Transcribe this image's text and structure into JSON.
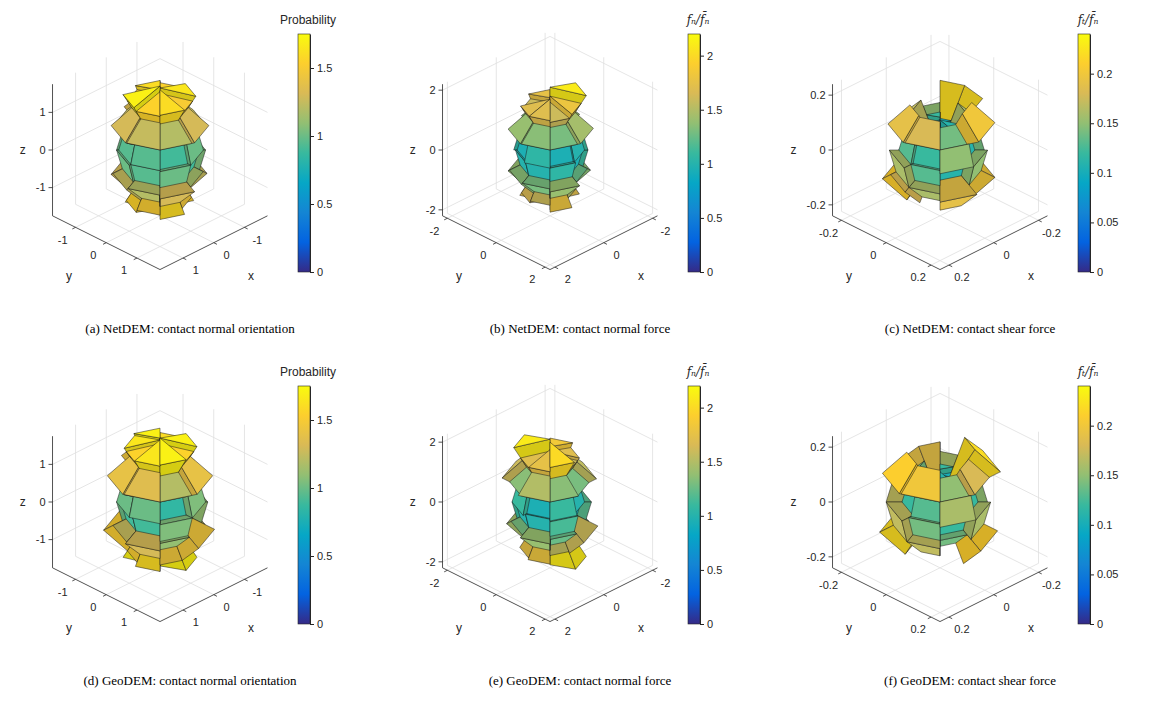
{
  "chart_data": [
    {
      "type": "rose3d",
      "caption": "(a) NetDEM: contact normal orientation",
      "grid": true,
      "xlabel": "x",
      "ylabel": "y",
      "zlabel": "z",
      "xlim": [
        -1.75,
        1.75
      ],
      "ylim": [
        -1.75,
        1.75
      ],
      "zlim": [
        -1.75,
        1.75
      ],
      "xticks": [
        -1,
        0,
        1
      ],
      "yticks": [
        -1,
        0,
        1
      ],
      "zticks": [
        -1,
        0,
        1
      ],
      "colorbar": {
        "label": "Probability",
        "range": [
          0,
          1.75
        ],
        "ticks": [
          0,
          0.5,
          1,
          1.5
        ]
      },
      "azimuth_bins": [
        0,
        45,
        90,
        135,
        180,
        225,
        270,
        315,
        360
      ],
      "elevation_bins": [
        -90,
        -60,
        -30,
        0,
        30,
        60,
        90
      ],
      "values": [
        [
          1.5,
          1.6,
          1.45,
          1.55,
          1.65,
          1.5,
          1.6,
          1.55
        ],
        [
          1.2,
          1.3,
          1.15,
          1.25,
          1.35,
          1.2,
          1.3,
          1.25
        ],
        [
          0.95,
          1.0,
          0.9,
          1.05,
          0.95,
          1.0,
          0.9,
          1.0
        ],
        [
          0.95,
          0.9,
          1.0,
          0.95,
          1.05,
          0.9,
          1.0,
          0.95
        ],
        [
          1.25,
          1.2,
          1.3,
          1.25,
          1.2,
          1.35,
          1.25,
          1.3
        ],
        [
          1.55,
          1.6,
          1.5,
          1.65,
          1.55,
          1.6,
          1.5,
          1.7
        ]
      ]
    },
    {
      "type": "rose3d",
      "caption": "(b) NetDEM: contact normal force",
      "grid": true,
      "xlabel": "x",
      "ylabel": "y",
      "zlabel": "z",
      "xlim": [
        -2.2,
        2.2
      ],
      "ylim": [
        -2.2,
        2.2
      ],
      "zlim": [
        -2.2,
        2.2
      ],
      "xticks": [
        -2,
        0,
        2
      ],
      "yticks": [
        -2,
        0,
        2
      ],
      "zticks": [
        -2,
        0,
        2
      ],
      "colorbar": {
        "label": "fₙ/f̄ₙ",
        "range": [
          0,
          2.2
        ],
        "ticks": [
          0,
          0.5,
          1,
          1.5,
          2
        ]
      },
      "azimuth_bins": [
        0,
        45,
        90,
        135,
        180,
        225,
        270,
        315,
        360
      ],
      "elevation_bins": [
        -90,
        -60,
        -30,
        0,
        30,
        60,
        90
      ],
      "values": [
        [
          1.6,
          1.8,
          1.5,
          1.7,
          2.0,
          1.6,
          1.75,
          1.65
        ],
        [
          1.3,
          1.4,
          1.25,
          1.35,
          1.45,
          1.3,
          1.4,
          1.35
        ],
        [
          1.0,
          1.05,
          0.95,
          1.1,
          1.0,
          1.05,
          0.95,
          1.0
        ],
        [
          1.05,
          0.95,
          1.0,
          1.1,
          0.95,
          1.0,
          1.05,
          0.95
        ],
        [
          1.35,
          1.3,
          1.45,
          1.3,
          1.4,
          1.35,
          1.3,
          1.4
        ],
        [
          1.7,
          1.6,
          1.8,
          2.1,
          1.65,
          1.75,
          1.6,
          1.7
        ]
      ]
    },
    {
      "type": "rose3d",
      "caption": "(c) NetDEM: contact shear force",
      "grid": true,
      "xlabel": "x",
      "ylabel": "y",
      "zlabel": "z",
      "xlim": [
        -0.24,
        0.24
      ],
      "ylim": [
        -0.24,
        0.24
      ],
      "zlim": [
        -0.24,
        0.24
      ],
      "xticks": [
        -0.2,
        0,
        0.2
      ],
      "yticks": [
        -0.2,
        0,
        0.2
      ],
      "zticks": [
        -0.2,
        0,
        0.2
      ],
      "colorbar": {
        "label": "fₜ/f̄ₙ",
        "range": [
          0,
          0.24
        ],
        "ticks": [
          0,
          0.05,
          0.1,
          0.15,
          0.2
        ]
      },
      "azimuth_bins": [
        0,
        45,
        90,
        135,
        180,
        225,
        270,
        315,
        360
      ],
      "elevation_bins": [
        -90,
        -60,
        -30,
        0,
        30,
        60,
        90
      ],
      "values": [
        [
          0.09,
          0.11,
          0.08,
          0.1,
          0.12,
          0.09,
          0.1,
          0.08
        ],
        [
          0.16,
          0.19,
          0.14,
          0.2,
          0.17,
          0.15,
          0.21,
          0.18
        ],
        [
          0.13,
          0.11,
          0.15,
          0.12,
          0.14,
          0.1,
          0.13,
          0.16
        ],
        [
          0.12,
          0.15,
          0.11,
          0.14,
          0.1,
          0.16,
          0.12,
          0.13
        ],
        [
          0.18,
          0.14,
          0.2,
          0.16,
          0.22,
          0.15,
          0.17,
          0.19
        ],
        [
          0.1,
          0.08,
          0.11,
          0.09,
          0.1,
          0.12,
          0.08,
          0.11
        ]
      ]
    },
    {
      "type": "rose3d",
      "caption": "(d) GeoDEM: contact normal orientation",
      "grid": true,
      "xlabel": "x",
      "ylabel": "y",
      "zlabel": "z",
      "xlim": [
        -1.75,
        1.75
      ],
      "ylim": [
        -1.75,
        1.75
      ],
      "zlim": [
        -1.75,
        1.75
      ],
      "xticks": [
        -1,
        0,
        1
      ],
      "yticks": [
        -1,
        0,
        1
      ],
      "zticks": [
        -1,
        0,
        1
      ],
      "colorbar": {
        "label": "Probability",
        "range": [
          0,
          1.75
        ],
        "ticks": [
          0,
          0.5,
          1,
          1.5
        ]
      },
      "azimuth_bins": [
        0,
        45,
        90,
        135,
        180,
        225,
        270,
        315,
        360
      ],
      "elevation_bins": [
        -90,
        -60,
        -30,
        0,
        30,
        60,
        90
      ],
      "values": [
        [
          1.6,
          1.45,
          1.7,
          1.5,
          1.65,
          1.55,
          1.7,
          1.5
        ],
        [
          1.3,
          1.1,
          1.45,
          1.2,
          1.35,
          1.15,
          1.5,
          1.25
        ],
        [
          0.9,
          1.05,
          0.85,
          1.1,
          0.95,
          0.8,
          1.0,
          0.9
        ],
        [
          1.0,
          0.85,
          1.05,
          0.9,
          0.95,
          1.1,
          0.85,
          1.0
        ],
        [
          1.35,
          1.2,
          1.4,
          1.15,
          1.3,
          1.45,
          1.25,
          1.4
        ],
        [
          1.65,
          1.7,
          1.55,
          1.7,
          1.6,
          1.7,
          1.65,
          1.55
        ]
      ]
    },
    {
      "type": "rose3d",
      "caption": "(e) GeoDEM: contact normal force",
      "grid": true,
      "xlabel": "x",
      "ylabel": "y",
      "zlabel": "z",
      "xlim": [
        -2.2,
        2.2
      ],
      "ylim": [
        -2.2,
        2.2
      ],
      "zlim": [
        -2.2,
        2.2
      ],
      "xticks": [
        -2,
        0,
        2
      ],
      "yticks": [
        -2,
        0,
        2
      ],
      "zticks": [
        -2,
        0,
        2
      ],
      "colorbar": {
        "label": "fₙ/f̄ₙ",
        "range": [
          0,
          2.2
        ],
        "ticks": [
          0,
          0.5,
          1,
          1.5,
          2
        ]
      },
      "azimuth_bins": [
        0,
        45,
        90,
        135,
        180,
        225,
        270,
        315,
        360
      ],
      "elevation_bins": [
        -90,
        -60,
        -30,
        0,
        30,
        60,
        90
      ],
      "values": [
        [
          1.8,
          1.55,
          2.1,
          1.6,
          1.7,
          1.9,
          1.5,
          1.75
        ],
        [
          1.4,
          1.25,
          1.6,
          1.3,
          1.5,
          1.35,
          1.45,
          1.3
        ],
        [
          1.0,
          1.15,
          0.9,
          1.2,
          1.05,
          0.95,
          1.1,
          1.0
        ],
        [
          0.95,
          1.1,
          1.0,
          0.9,
          1.2,
          1.05,
          0.95,
          1.1
        ],
        [
          1.5,
          1.35,
          1.3,
          1.55,
          1.4,
          1.3,
          1.6,
          1.35
        ],
        [
          1.75,
          2.0,
          1.6,
          1.7,
          1.85,
          1.65,
          2.1,
          1.7
        ]
      ]
    },
    {
      "type": "rose3d",
      "caption": "(f) GeoDEM: contact shear force",
      "grid": true,
      "xlabel": "x",
      "ylabel": "y",
      "zlabel": "z",
      "xlim": [
        -0.24,
        0.24
      ],
      "ylim": [
        -0.24,
        0.24
      ],
      "zlim": [
        -0.24,
        0.24
      ],
      "xticks": [
        -0.2,
        0,
        0.2
      ],
      "yticks": [
        -0.2,
        0,
        0.2
      ],
      "zticks": [
        -0.2,
        0,
        0.2
      ],
      "colorbar": {
        "label": "fₜ/f̄ₙ",
        "range": [
          0,
          0.24
        ],
        "ticks": [
          0,
          0.05,
          0.1,
          0.15,
          0.2
        ]
      },
      "azimuth_bins": [
        0,
        45,
        90,
        135,
        180,
        225,
        270,
        315,
        360
      ],
      "elevation_bins": [
        -90,
        -60,
        -30,
        0,
        30,
        60,
        90
      ],
      "values": [
        [
          0.08,
          0.1,
          0.07,
          0.11,
          0.09,
          0.08,
          0.1,
          0.09
        ],
        [
          0.17,
          0.14,
          0.21,
          0.15,
          0.19,
          0.16,
          0.22,
          0.14
        ],
        [
          0.14,
          0.12,
          0.16,
          0.11,
          0.15,
          0.13,
          0.12,
          0.17
        ],
        [
          0.13,
          0.16,
          0.12,
          0.15,
          0.11,
          0.14,
          0.17,
          0.12
        ],
        [
          0.2,
          0.15,
          0.18,
          0.22,
          0.16,
          0.19,
          0.14,
          0.21
        ],
        [
          0.09,
          0.11,
          0.08,
          0.1,
          0.12,
          0.09,
          0.11,
          0.08
        ]
      ]
    }
  ]
}
